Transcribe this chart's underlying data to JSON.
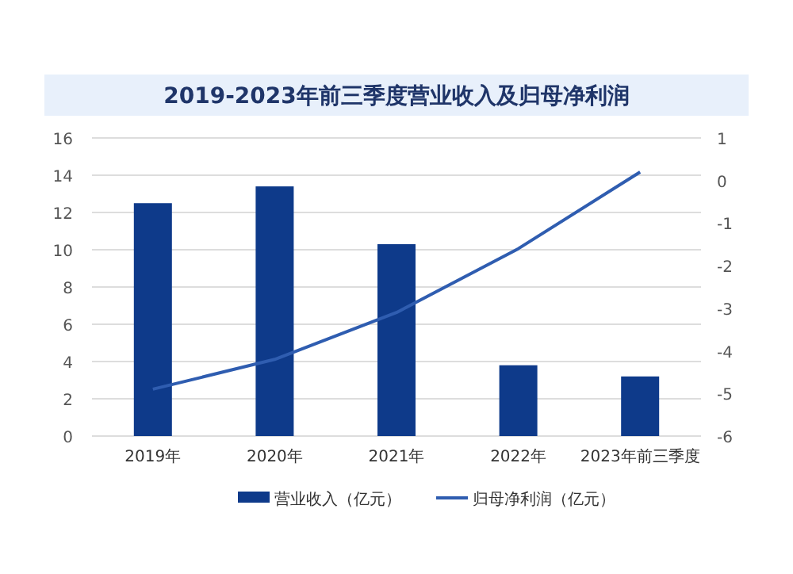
{
  "chart_data": {
    "type": "bar",
    "title": "2019-2023年前三季度营业收入及归母净利润",
    "categories": [
      "2019年",
      "2020年",
      "2021年",
      "2022年",
      "2023年前三季度"
    ],
    "series": [
      {
        "name": "营业收入（亿元）",
        "color": "#0e3a8a",
        "values": [
          12.5,
          13.4,
          10.3,
          3.8,
          3.2
        ]
      },
      {
        "name": "归母净利润（亿元）",
        "type": "line",
        "axis": "y2",
        "color": "#2f5db0",
        "values": [
          -4.9,
          -4.2,
          -3.1,
          -1.6,
          0.2
        ]
      }
    ],
    "ylim": [
      0,
      16
    ],
    "yticks": [
      0,
      2,
      4,
      6,
      8,
      10,
      12,
      14,
      16
    ],
    "y2lim": [
      -6,
      1
    ],
    "y2ticks": [
      -6,
      -5,
      -4,
      -3,
      -2,
      -1,
      0,
      1
    ],
    "grid": "y",
    "legend": "bottom"
  }
}
